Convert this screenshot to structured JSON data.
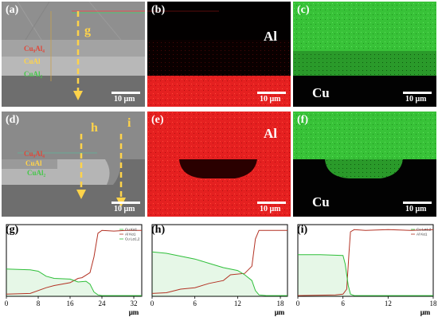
{
  "figure": {
    "panels": {
      "a": {
        "label": "(a)",
        "line_label": "g",
        "scale": "10 μm",
        "phases": [
          "Cu₉Al₄",
          "CuAl",
          "CuAl₂"
        ]
      },
      "b": {
        "label": "(b)",
        "element": "Al",
        "scale": "10 μm"
      },
      "c": {
        "label": "(c)",
        "element": "Cu",
        "scale": "10 μm"
      },
      "d": {
        "label": "(d)",
        "line_labels": [
          "h",
          "i"
        ],
        "scale": "10 μm",
        "phases": [
          "Cu₉Al₄",
          "CuAl",
          "CuAl₂"
        ]
      },
      "e": {
        "label": "(e)",
        "element": "Al",
        "scale": "10 μm"
      },
      "f": {
        "label": "(f)",
        "element": "Cu",
        "scale": "10 μm"
      },
      "g": {
        "label": "(g)",
        "unit": "μm"
      },
      "h": {
        "label": "(h)",
        "unit": "μm"
      },
      "i": {
        "label": "(i)",
        "unit": "μm"
      }
    },
    "colors": {
      "al": "#b33224",
      "cu": "#2fbf3a",
      "annot_yellow": "#ffd34a",
      "annot_red": "#e0483a",
      "annot_green": "#46c74a"
    }
  },
  "chart_data": [
    {
      "type": "line",
      "panel": "g",
      "xlim": [
        0,
        34
      ],
      "ylim": [
        0,
        1
      ],
      "xticks": [
        "0",
        "8",
        "16",
        "24",
        "32"
      ],
      "xtick_values": [
        0,
        8,
        16,
        24,
        32
      ],
      "xlabel": "μm",
      "legend": [
        "Cu Kα1",
        "Al Kα1",
        "Cu Lα1,2"
      ],
      "series": [
        {
          "name": "Al Kα1",
          "color": "#b33224",
          "x": [
            0,
            6,
            10,
            12,
            16,
            18,
            19,
            21,
            22,
            23,
            24,
            27,
            30,
            34
          ],
          "y": [
            0.03,
            0.04,
            0.12,
            0.15,
            0.19,
            0.25,
            0.26,
            0.33,
            0.55,
            0.88,
            0.92,
            0.91,
            0.92,
            0.92
          ]
        },
        {
          "name": "Cu Lα1,2",
          "color": "#2fbf3a",
          "x": [
            0,
            6,
            8,
            10,
            12,
            16,
            18,
            20,
            21,
            22,
            23,
            24,
            34
          ],
          "y": [
            0.38,
            0.37,
            0.35,
            0.28,
            0.25,
            0.24,
            0.2,
            0.21,
            0.17,
            0.06,
            0.02,
            0.01,
            0.01
          ]
        }
      ]
    },
    {
      "type": "line",
      "panel": "h",
      "xlim": [
        0,
        19
      ],
      "ylim": [
        0,
        1
      ],
      "xticks": [
        "0",
        "6",
        "12",
        "18"
      ],
      "xtick_values": [
        0,
        6,
        12,
        18
      ],
      "xlabel": "μm",
      "series": [
        {
          "name": "Al",
          "color": "#b33224",
          "x": [
            0,
            2,
            4,
            6,
            8,
            10,
            11,
            13,
            14,
            14.5,
            15,
            16,
            19
          ],
          "y": [
            0.04,
            0.05,
            0.1,
            0.12,
            0.18,
            0.22,
            0.3,
            0.32,
            0.42,
            0.8,
            0.92,
            0.92,
            0.92
          ]
        },
        {
          "name": "Cu",
          "color": "#2fbf3a",
          "x": [
            0,
            2,
            4,
            6,
            8,
            10,
            12,
            13,
            14,
            14.5,
            15,
            16,
            19
          ],
          "y": [
            0.62,
            0.6,
            0.56,
            0.52,
            0.46,
            0.4,
            0.36,
            0.3,
            0.22,
            0.08,
            0.02,
            0.01,
            0.01
          ]
        }
      ]
    },
    {
      "type": "line",
      "panel": "i",
      "xlim": [
        0,
        18
      ],
      "ylim": [
        0,
        1
      ],
      "xticks": [
        "0",
        "6",
        "12",
        "18"
      ],
      "xtick_values": [
        0,
        6,
        12,
        18
      ],
      "xlabel": "μm",
      "legend": [
        "Cu Lα1,2",
        "Al Kα1"
      ],
      "series": [
        {
          "name": "Al Kα1",
          "color": "#b33224",
          "x": [
            0,
            5,
            6,
            6.5,
            6.8,
            7,
            7.5,
            9,
            12,
            15,
            18
          ],
          "y": [
            0.01,
            0.02,
            0.03,
            0.1,
            0.6,
            0.9,
            0.93,
            0.92,
            0.93,
            0.92,
            0.93
          ]
        },
        {
          "name": "Cu Lα1,2",
          "color": "#2fbf3a",
          "x": [
            0,
            3,
            6,
            6.3,
            6.7,
            7,
            7.5,
            10,
            18
          ],
          "y": [
            0.58,
            0.58,
            0.57,
            0.45,
            0.15,
            0.03,
            0.01,
            0.01,
            0.01
          ]
        }
      ]
    }
  ]
}
